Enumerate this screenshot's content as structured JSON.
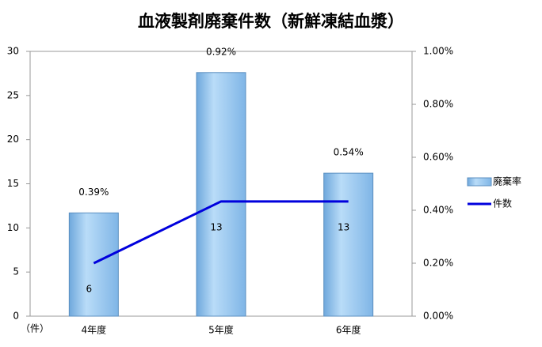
{
  "chart_data": {
    "type": "bar",
    "title": "血液製剤廃棄件数（新鮮凍結血漿）",
    "y_label": "（件）",
    "categories": [
      "4年度",
      "5年度",
      "6年度"
    ],
    "series": [
      {
        "name": "廃棄率",
        "type": "bar",
        "axis": "y2",
        "color": "#8fc3f0",
        "values": [
          0.39,
          0.92,
          0.54
        ],
        "value_labels": [
          "0.39%",
          "0.92%",
          "0.54%"
        ]
      },
      {
        "name": "件数",
        "type": "line",
        "color": "#0000dd",
        "values": [
          6,
          13,
          13
        ]
      }
    ],
    "ylim": [
      0,
      30
    ],
    "yticks": [
      0,
      5,
      10,
      15,
      20,
      25,
      30
    ],
    "y2lim": [
      0,
      1
    ],
    "y2ticks": [
      {
        "value": 0,
        "label": "0.00%"
      },
      {
        "value": 0.2,
        "label": "0.20%"
      },
      {
        "value": 0.4,
        "label": "0.40%"
      },
      {
        "value": 0.6,
        "label": "0.60%"
      },
      {
        "value": 0.8,
        "label": "0.80%"
      },
      {
        "value": 1,
        "label": "1.00%"
      }
    ],
    "legend": "right"
  }
}
